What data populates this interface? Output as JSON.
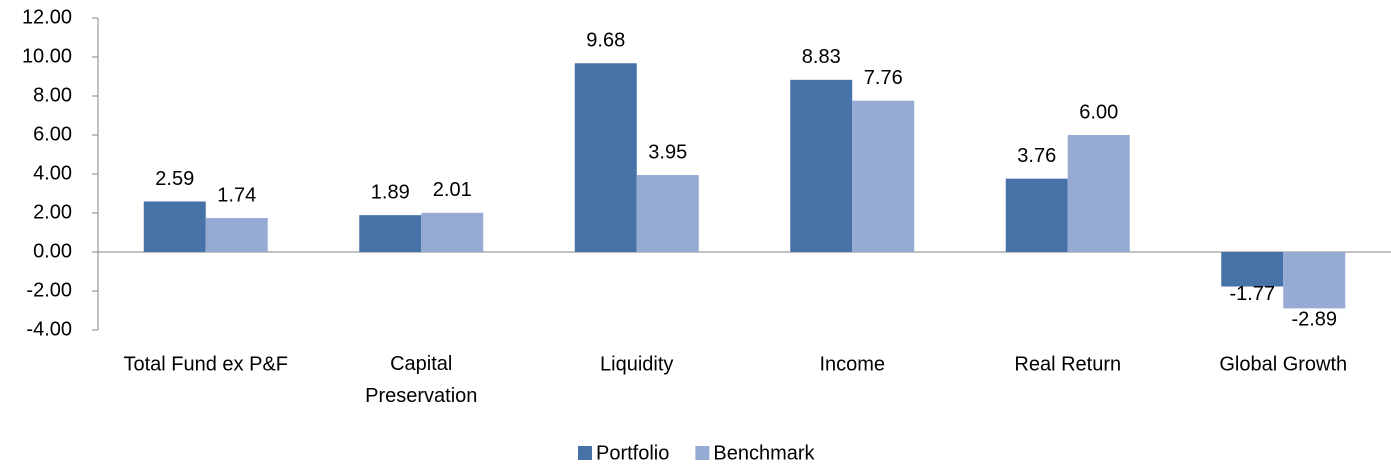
{
  "chart_data": {
    "type": "bar",
    "categories": [
      "Total Fund ex P&F",
      "Capital Preservation",
      "Liquidity",
      "Income",
      "Real Return",
      "Global Growth"
    ],
    "series": [
      {
        "name": "Portfolio",
        "color": "#4672a8",
        "values": [
          2.59,
          1.89,
          9.68,
          8.83,
          3.76,
          -1.77
        ],
        "value_labels": [
          "2.59",
          "1.89",
          "9.68",
          "8.83",
          "3.76",
          "-1.77"
        ]
      },
      {
        "name": "Benchmark",
        "color": "#95abd4",
        "values": [
          1.74,
          2.01,
          3.95,
          7.76,
          6.0,
          -2.89
        ],
        "value_labels": [
          "1.74",
          "2.01",
          "3.95",
          "7.76",
          "6.00",
          "-2.89"
        ]
      }
    ],
    "ylim": [
      -4,
      12
    ],
    "yticks": [
      {
        "value": -4,
        "label": "-4.00"
      },
      {
        "value": -2,
        "label": "-2.00"
      },
      {
        "value": 0,
        "label": "0.00"
      },
      {
        "value": 2,
        "label": "2.00"
      },
      {
        "value": 4,
        "label": "4.00"
      },
      {
        "value": 6,
        "label": "6.00"
      },
      {
        "value": 8,
        "label": "8.00"
      },
      {
        "value": 10,
        "label": "10.00"
      },
      {
        "value": 12,
        "label": "12.00"
      }
    ],
    "grid": false,
    "legend": "bottom"
  }
}
